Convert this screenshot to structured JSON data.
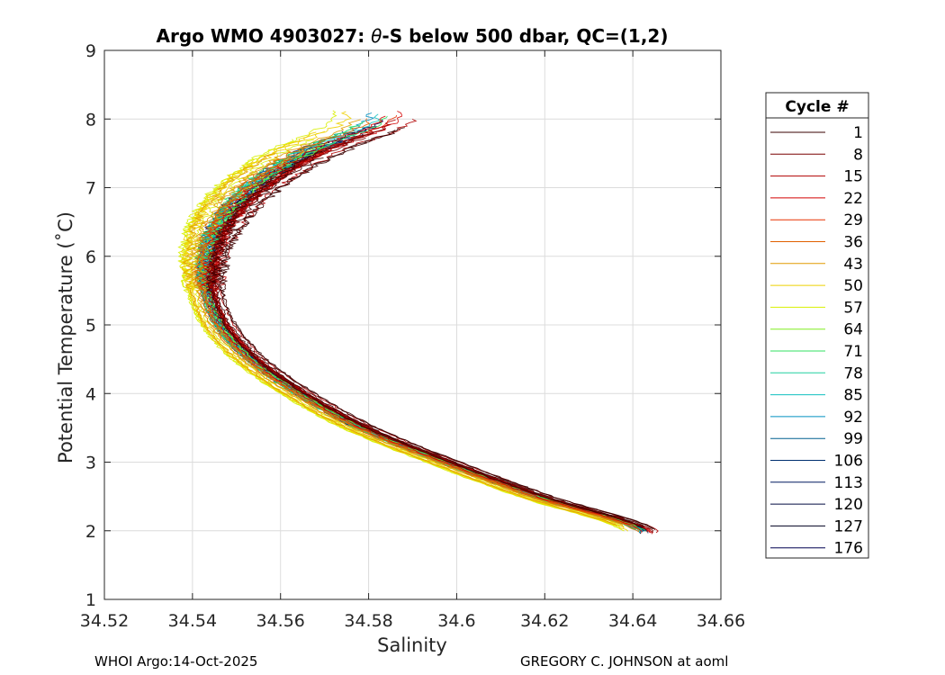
{
  "chart_data": {
    "type": "line",
    "title_prefix": "Argo WMO 4903027: ",
    "title_theta": "θ",
    "title_suffix": "-S below 500 dbar,  QC=(1,2)",
    "xlabel": "Salinity",
    "ylabel": "Potential Temperature (˚C)",
    "xlim": [
      34.52,
      34.66
    ],
    "ylim": [
      1,
      9
    ],
    "xticks": [
      34.52,
      34.54,
      34.56,
      34.58,
      34.6,
      34.62,
      34.64,
      34.66
    ],
    "xtick_labels": [
      "34.52",
      "34.54",
      "34.56",
      "34.58",
      "34.6",
      "34.62",
      "34.64",
      "34.66"
    ],
    "yticks": [
      1,
      2,
      3,
      4,
      5,
      6,
      7,
      8,
      9
    ],
    "ytick_labels": [
      "1",
      "2",
      "3",
      "4",
      "5",
      "6",
      "7",
      "8",
      "9"
    ],
    "grid": true,
    "legend_position": "right",
    "legend_title": "Cycle #",
    "series": [
      {
        "name": "1",
        "color": "#3a0000",
        "offset": 0.003
      },
      {
        "name": "8",
        "color": "#7a0000",
        "offset": 0.0026
      },
      {
        "name": "15",
        "color": "#b00000",
        "offset": 0.0022
      },
      {
        "name": "22",
        "color": "#d40000",
        "offset": 0.0016
      },
      {
        "name": "29",
        "color": "#e83000",
        "offset": 0.0008
      },
      {
        "name": "36",
        "color": "#e06000",
        "offset": -0.0008
      },
      {
        "name": "43",
        "color": "#e09a00",
        "offset": -0.0018
      },
      {
        "name": "50",
        "color": "#eed000",
        "offset": -0.0026
      },
      {
        "name": "57",
        "color": "#d8f000",
        "offset": -0.0034
      },
      {
        "name": "64",
        "color": "#80ee20",
        "offset": -0.0004
      },
      {
        "name": "71",
        "color": "#30e060",
        "offset": 0.0002
      },
      {
        "name": "78",
        "color": "#20d0a0",
        "offset": 0.0
      },
      {
        "name": "85",
        "color": "#10c0c0",
        "offset": 0.0
      },
      {
        "name": "92",
        "color": "#0090c0",
        "offset": 0.0
      },
      {
        "name": "99",
        "color": "#006090",
        "offset": 0.0
      },
      {
        "name": "106",
        "color": "#003070",
        "offset": 0.0
      },
      {
        "name": "113",
        "color": "#001a60",
        "offset": 0.0
      },
      {
        "name": "120",
        "color": "#000a40",
        "offset": 0.0
      },
      {
        "name": "127",
        "color": "#000020",
        "offset": 0.0
      },
      {
        "name": "176",
        "color": "#000050",
        "offset": 0.0
      }
    ],
    "base_curve": {
      "theta": [
        2.0,
        2.5,
        3.0,
        3.5,
        4.0,
        4.5,
        5.0,
        5.5,
        6.0,
        6.5,
        7.0,
        7.5,
        8.0
      ],
      "salinity": [
        34.642,
        34.618,
        34.597,
        34.578,
        34.564,
        34.553,
        34.546,
        34.543,
        34.543,
        34.546,
        34.553,
        34.565,
        34.582
      ]
    },
    "footer_left": "WHOI Argo:14-Oct-2025",
    "footer_right": "GREGORY C. JOHNSON at aoml"
  }
}
